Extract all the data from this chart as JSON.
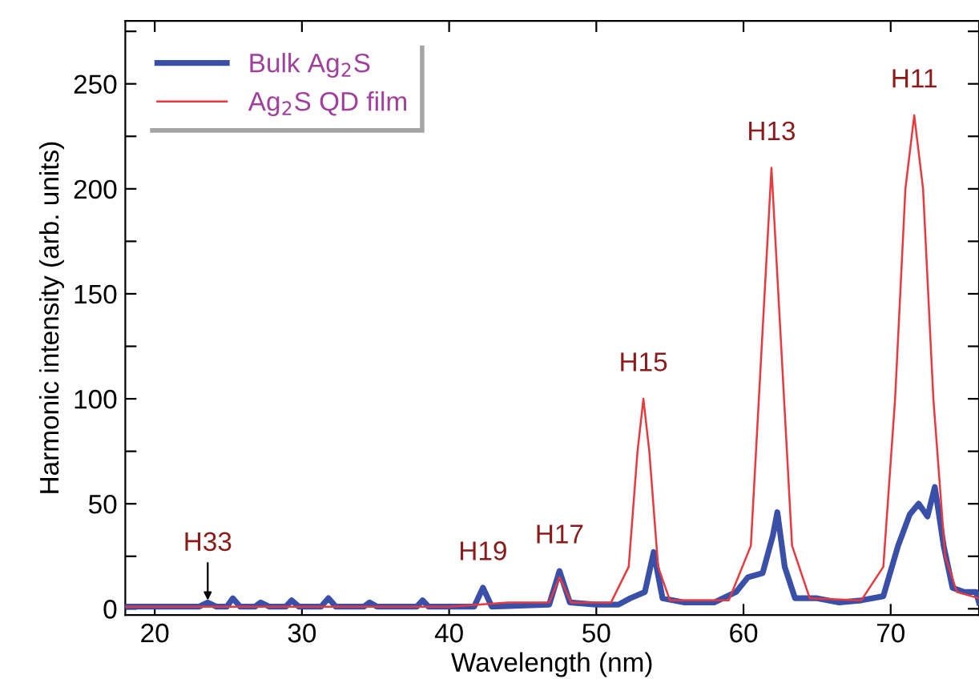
{
  "chart_data": {
    "type": "line",
    "xlabel": "Wavelength (nm)",
    "ylabel": "Harmonic intensity (arb. units)",
    "xlim": [
      18,
      76
    ],
    "xticks": [
      20,
      30,
      40,
      50,
      60,
      70
    ],
    "ylim": [
      -3,
      280
    ],
    "yticks": [
      0,
      {
        "value": 25,
        "label": null
      },
      50,
      {
        "value": 75,
        "label": null
      },
      100,
      {
        "value": 125,
        "label": null
      },
      150,
      {
        "value": 175,
        "label": null
      },
      200,
      {
        "value": 225,
        "label": null
      },
      250,
      {
        "value": 275,
        "label": null
      }
    ],
    "grid": false,
    "legend": "top left",
    "marker": "none",
    "line_style": "solid",
    "series": [
      {
        "name": "Bulk Ag$_{2}$S",
        "color": "#3a4fa8",
        "x": [
          18,
          21,
          23,
          23.6,
          24.2,
          24.9,
          25.3,
          25.8,
          26.8,
          27.2,
          27.8,
          28.9,
          29.3,
          29.8,
          31.3,
          31.8,
          32.3,
          34.2,
          34.6,
          35.1,
          37.8,
          38.2,
          38.6,
          41.7,
          42.3,
          42.9,
          46.8,
          47.5,
          48.2,
          50,
          51.5,
          52.3,
          53.3,
          53.9,
          54.5,
          56,
          58,
          59.5,
          60.3,
          61.3,
          62.0,
          62.3,
          62.8,
          63.5,
          65,
          66.5,
          68,
          69.5,
          70.5,
          71.3,
          71.9,
          72.5,
          73,
          73.6,
          74.2,
          75,
          75.8,
          76
        ],
        "values": [
          1,
          1,
          1,
          3,
          1,
          1,
          5,
          1,
          1,
          3,
          1,
          1,
          4,
          1,
          1,
          5,
          1,
          1,
          3,
          1,
          1,
          4,
          1,
          1,
          10,
          1,
          2,
          18,
          3,
          2,
          2,
          5,
          8,
          27,
          5,
          3,
          3,
          8,
          15,
          17,
          35,
          46,
          20,
          5,
          5,
          3,
          4,
          6,
          30,
          45,
          50,
          44,
          58,
          30,
          10,
          8,
          8,
          3
        ]
      },
      {
        "name": "Ag$_{2}$S QD film",
        "color": "#e8393f",
        "x": [
          18,
          40,
          44,
          46.8,
          47.5,
          48.3,
          51,
          52.2,
          52.8,
          53.2,
          53.6,
          54.2,
          55,
          59,
          60.5,
          61.2,
          61.9,
          62.6,
          63.3,
          64.5,
          68,
          69.5,
          70.3,
          71.0,
          71.6,
          72.2,
          72.9,
          73.7,
          74.5,
          76
        ],
        "values": [
          1,
          1,
          3,
          3,
          15,
          3,
          3,
          20,
          75,
          100,
          75,
          20,
          4,
          4,
          30,
          120,
          210,
          120,
          30,
          5,
          4,
          20,
          100,
          200,
          235,
          200,
          100,
          25,
          8,
          5
        ]
      }
    ],
    "annotations": [
      {
        "text": "H33",
        "x": 23.6,
        "y": 3
      },
      {
        "text": "H19",
        "x": 42.3,
        "y": 10
      },
      {
        "text": "H17",
        "x": 47.5,
        "y": 18
      },
      {
        "text": "H15",
        "x": 53.2,
        "y": 100
      },
      {
        "text": "H13",
        "x": 61.9,
        "y": 210
      },
      {
        "text": "H11",
        "x": 71.6,
        "y": 235
      }
    ]
  }
}
